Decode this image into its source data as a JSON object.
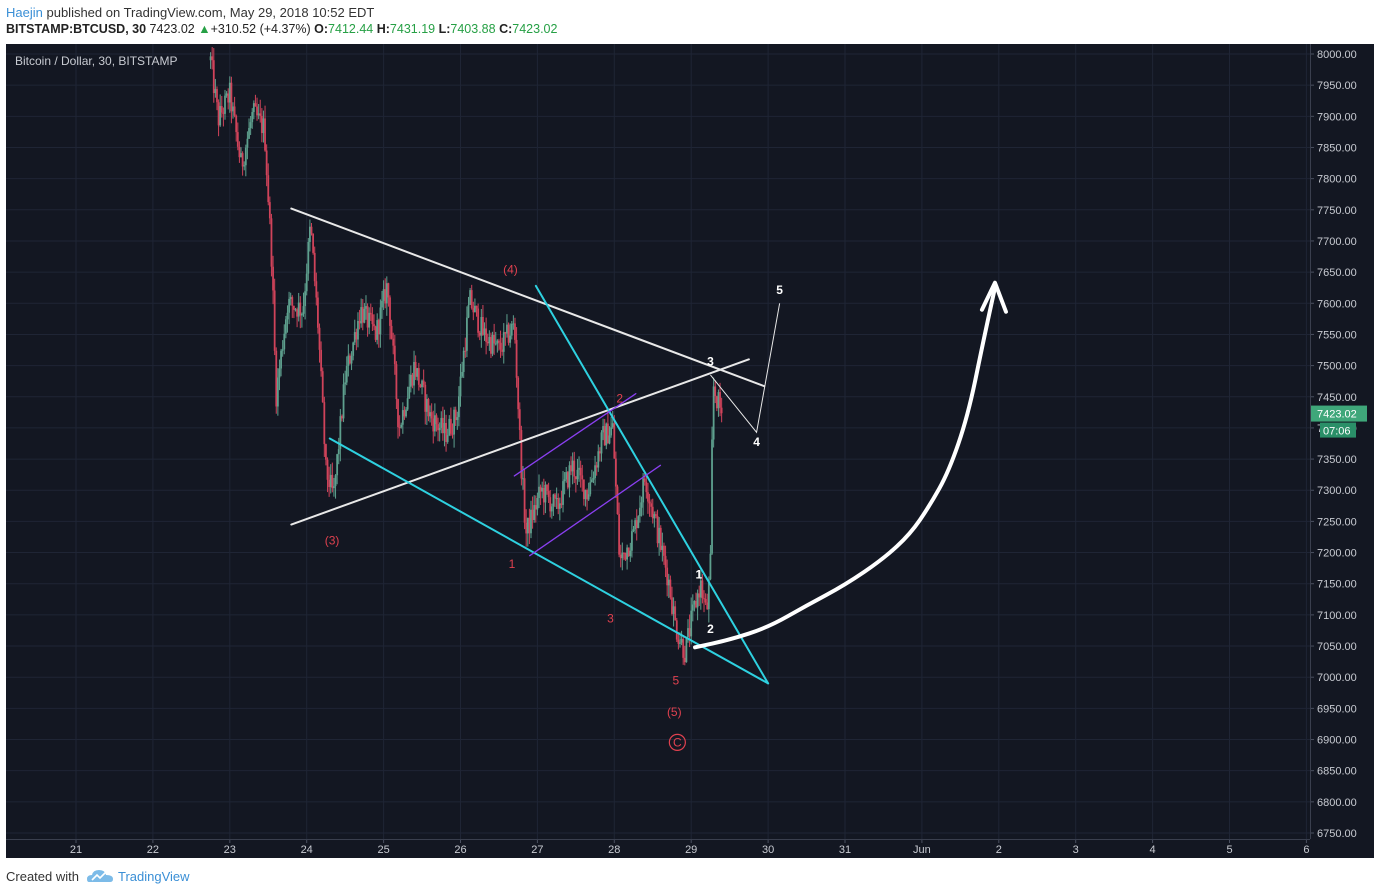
{
  "header": {
    "author": "Haejin",
    "published_text": "published on TradingView.com, May 29, 2018 10:52 EDT",
    "symbol": "BITSTAMP:BTCUSD, 30",
    "last": "7423.02",
    "arrow": "▲",
    "change": "+310.52 (+4.37%)",
    "o_label": "O:",
    "o_value": "7412.44",
    "h_label": "H:",
    "h_value": "7431.19",
    "l_label": "L:",
    "l_value": "7403.88",
    "c_label": "C:",
    "c_value": "7423.02"
  },
  "legend_title": "Bitcoin / Dollar, 30, BITSTAMP",
  "footer": {
    "created_with": "Created with",
    "brand": "TradingView",
    "logo_icon": "tradingview-cloud-icon"
  },
  "colors": {
    "background": "#131722",
    "grid": "#1f2535",
    "up": "#5ea08e",
    "down": "#d0435a",
    "white_line": "#e8e8e8",
    "cyan_line": "#2ed1e0",
    "purple_line": "#8a3ff0",
    "red_label": "#e0414f",
    "price_label": "#3fa77a",
    "time_label": "#2a8f68"
  },
  "price_axis": {
    "min": 6750,
    "max": 8000,
    "step": 50,
    "labels": [
      "8000.00",
      "7950.00",
      "7900.00",
      "7850.00",
      "7800.00",
      "7750.00",
      "7700.00",
      "7650.00",
      "7600.00",
      "7550.00",
      "7500.00",
      "7450.00",
      "7400.00",
      "7350.00",
      "7300.00",
      "7250.00",
      "7200.00",
      "7150.00",
      "7100.00",
      "7050.00",
      "7000.00",
      "6950.00",
      "6900.00",
      "6850.00",
      "6800.00",
      "6750.00"
    ],
    "current_price": 7423.02,
    "current_price_label": "7423.02",
    "countdown_label": "07:06"
  },
  "time_axis": {
    "labels": [
      "21",
      "22",
      "23",
      "24",
      "25",
      "26",
      "27",
      "28",
      "29",
      "30",
      "31",
      "Jun",
      "2",
      "3",
      "4",
      "5",
      "6"
    ]
  },
  "chart_data": {
    "type": "candlestick",
    "title": "Bitcoin / Dollar, 30, BITSTAMP",
    "symbol": "BITSTAMP:BTCUSD",
    "interval": "30",
    "ylim": [
      6750,
      8000
    ],
    "x_categories": [
      "21",
      "22",
      "23",
      "24",
      "25",
      "26",
      "27",
      "28",
      "29",
      "30",
      "31",
      "Jun",
      "2",
      "3",
      "4",
      "5",
      "6"
    ],
    "last_bar": {
      "open": 7412.44,
      "high": 7431.19,
      "low": 7403.88,
      "close": 7423.02,
      "change": 310.52,
      "change_pct": 4.37
    },
    "price_path": [
      {
        "day": 22.75,
        "price": 7990
      },
      {
        "day": 22.85,
        "price": 7895
      },
      {
        "day": 23.0,
        "price": 7935
      },
      {
        "day": 23.15,
        "price": 7820
      },
      {
        "day": 23.3,
        "price": 7905
      },
      {
        "day": 23.45,
        "price": 7880
      },
      {
        "day": 23.55,
        "price": 7660
      },
      {
        "day": 23.6,
        "price": 7450
      },
      {
        "day": 23.75,
        "price": 7600
      },
      {
        "day": 23.95,
        "price": 7590
      },
      {
        "day": 24.05,
        "price": 7725
      },
      {
        "day": 24.15,
        "price": 7560
      },
      {
        "day": 24.25,
        "price": 7330
      },
      {
        "day": 24.35,
        "price": 7290
      },
      {
        "day": 24.5,
        "price": 7480
      },
      {
        "day": 24.7,
        "price": 7590
      },
      {
        "day": 24.9,
        "price": 7550
      },
      {
        "day": 25.05,
        "price": 7630
      },
      {
        "day": 25.2,
        "price": 7400
      },
      {
        "day": 25.4,
        "price": 7500
      },
      {
        "day": 25.6,
        "price": 7420
      },
      {
        "day": 25.8,
        "price": 7390
      },
      {
        "day": 25.95,
        "price": 7420
      },
      {
        "day": 26.12,
        "price": 7605
      },
      {
        "day": 26.3,
        "price": 7550
      },
      {
        "day": 26.5,
        "price": 7525
      },
      {
        "day": 26.7,
        "price": 7565
      },
      {
        "day": 26.78,
        "price": 7360
      },
      {
        "day": 26.85,
        "price": 7230
      },
      {
        "day": 27.05,
        "price": 7300
      },
      {
        "day": 27.25,
        "price": 7270
      },
      {
        "day": 27.45,
        "price": 7340
      },
      {
        "day": 27.65,
        "price": 7295
      },
      {
        "day": 27.85,
        "price": 7385
      },
      {
        "day": 27.98,
        "price": 7400
      },
      {
        "day": 28.07,
        "price": 7185
      },
      {
        "day": 28.25,
        "price": 7230
      },
      {
        "day": 28.4,
        "price": 7320
      },
      {
        "day": 28.55,
        "price": 7240
      },
      {
        "day": 28.7,
        "price": 7160
      },
      {
        "day": 28.8,
        "price": 7080
      },
      {
        "day": 28.92,
        "price": 7040
      },
      {
        "day": 29.02,
        "price": 7100
      },
      {
        "day": 29.12,
        "price": 7150
      },
      {
        "day": 29.2,
        "price": 7100
      },
      {
        "day": 29.25,
        "price": 7180
      },
      {
        "day": 29.28,
        "price": 7470
      },
      {
        "day": 29.35,
        "price": 7440
      },
      {
        "day": 29.4,
        "price": 7423
      }
    ],
    "annotations": {
      "red_waves": [
        "(4)",
        "(3)",
        "1",
        "2",
        "3",
        "5",
        "(5)",
        "C"
      ],
      "white_waves": [
        "1",
        "2",
        "3",
        "4",
        "5"
      ]
    },
    "grid": true
  },
  "drawings": {
    "white_lines": [
      {
        "d1": 23.8,
        "p1": 7752,
        "d2": 29.95,
        "p2": 7467
      },
      {
        "d1": 23.8,
        "p1": 7245,
        "d2": 29.75,
        "p2": 7510
      }
    ],
    "cyan_lines": [
      {
        "d1": 24.3,
        "p1": 7383,
        "d2": 30.0,
        "p2": 6990
      },
      {
        "d1": 26.98,
        "p1": 7628,
        "d2": 30.0,
        "p2": 6990
      }
    ],
    "purple_lines": [
      {
        "d1": 26.7,
        "p1": 7323,
        "d2": 28.28,
        "p2": 7455
      },
      {
        "d1": 26.9,
        "p1": 7195,
        "d2": 28.6,
        "p2": 7340
      }
    ],
    "white_projection": [
      {
        "d": 29.25,
        "p": 7485
      },
      {
        "d": 29.85,
        "p": 7393
      },
      {
        "d": 30.15,
        "p": 7600
      }
    ],
    "big_arrow_path": [
      {
        "d": 29.05,
        "p": 7048
      },
      {
        "d": 29.5,
        "p": 7060
      },
      {
        "d": 30.0,
        "p": 7080
      },
      {
        "d": 30.5,
        "p": 7115
      },
      {
        "d": 31.0,
        "p": 7148
      },
      {
        "d": 31.5,
        "p": 7190
      },
      {
        "d": 31.85,
        "p": 7230
      },
      {
        "d": 32.1,
        "p": 7275
      },
      {
        "d": 32.35,
        "p": 7330
      },
      {
        "d": 32.6,
        "p": 7420
      },
      {
        "d": 32.8,
        "p": 7540
      },
      {
        "d": 32.95,
        "p": 7625
      }
    ],
    "red_labels": [
      {
        "text": "(4)",
        "d": 26.65,
        "p": 7648
      },
      {
        "text": "(3)",
        "d": 24.33,
        "p": 7213
      },
      {
        "text": "1",
        "d": 26.67,
        "p": 7175
      },
      {
        "text": "2",
        "d": 28.07,
        "p": 7441
      },
      {
        "text": "3",
        "d": 27.95,
        "p": 7088
      },
      {
        "text": "5",
        "d": 28.8,
        "p": 6988
      },
      {
        "text": "(5)",
        "d": 28.78,
        "p": 6938
      }
    ],
    "white_labels": [
      {
        "text": "1",
        "d": 29.1,
        "p": 7158
      },
      {
        "text": "2",
        "d": 29.25,
        "p": 7071
      },
      {
        "text": "3",
        "d": 29.25,
        "p": 7500
      },
      {
        "text": "4",
        "d": 29.85,
        "p": 7371
      },
      {
        "text": "5",
        "d": 30.15,
        "p": 7615
      }
    ],
    "circled_label": {
      "text": "C",
      "d": 28.82,
      "p": 6889
    }
  }
}
